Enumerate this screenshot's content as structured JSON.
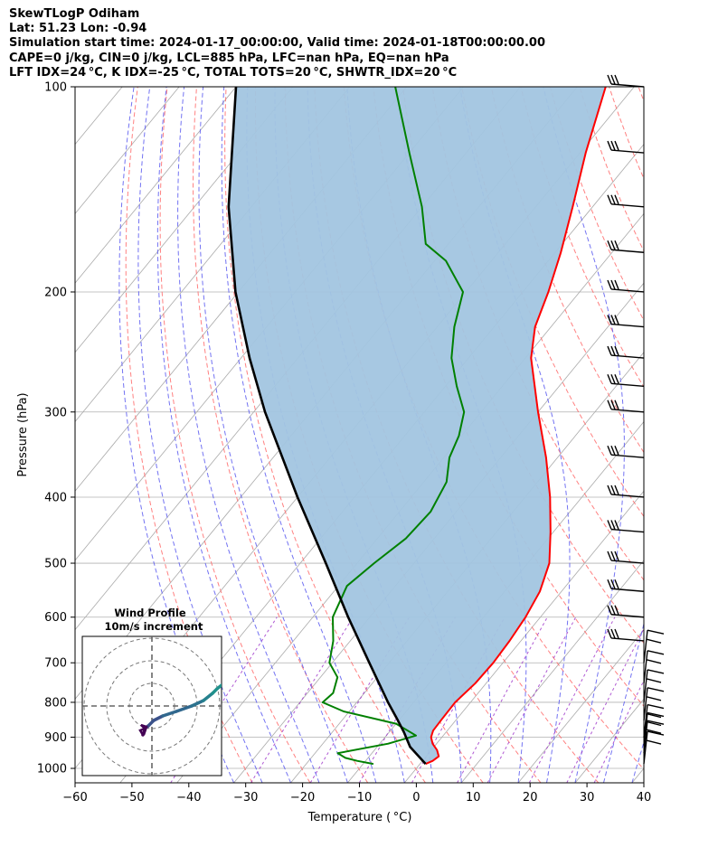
{
  "header": {
    "lines": [
      "SkewTLogP Odiham",
      "Lat: 51.23   Lon: -0.94",
      "Simulation start time: 2024-01-17_00:00:00, Valid time: 2024-01-18T00:00:00.00",
      "CAPE=0 j/kg, CIN=0 j/kg, LCL=885 hPa, LFC=nan hPa, EQ=nan hPa",
      "LFT IDX=24 °C, K IDX=-25 °C, TOTAL TOTS=20 °C, SHWTR_IDX=20 °C"
    ]
  },
  "chart_data": {
    "type": "line",
    "subtype": "skew-t log-p",
    "xlabel": "Temperature ( °C)",
    "ylabel": "Pressure (hPa)",
    "xlim": [
      -60,
      40
    ],
    "ylim": [
      1050,
      100
    ],
    "yscale": "log",
    "x_ticks": [
      "−60",
      "−50",
      "−40",
      "−30",
      "−20",
      "−10",
      "0",
      "10",
      "20",
      "30",
      "40"
    ],
    "y_ticks": [
      {
        "p": 100,
        "label": "100"
      },
      {
        "p": 200,
        "label": "200"
      },
      {
        "p": 300,
        "label": "300"
      },
      {
        "p": 400,
        "label": "400"
      },
      {
        "p": 500,
        "label": "500"
      },
      {
        "p": 600,
        "label": "600"
      },
      {
        "p": 700,
        "label": "700"
      },
      {
        "p": 800,
        "label": "800"
      },
      {
        "p": 900,
        "label": "900"
      },
      {
        "p": 1000,
        "label": "1000"
      }
    ],
    "grid": true,
    "colors": {
      "temperature": "#ff0000",
      "dewpoint": "#008000",
      "parcel": "#000000",
      "cape_fill": "#a2c5e0",
      "dry_adiabats": "#ff6b6b",
      "moist_adiabats": "#5a5af0",
      "mixing_ratio": "#9b30c8",
      "isotherms": "#aaaaaa"
    },
    "series": [
      {
        "role": "temperature",
        "points": [
          [
            985,
            1.0
          ],
          [
            975,
            1.8
          ],
          [
            960,
            2.2
          ],
          [
            940,
            1.0
          ],
          [
            920,
            -0.7
          ],
          [
            900,
            -1.9
          ],
          [
            880,
            -2.5
          ],
          [
            850,
            -2.6
          ],
          [
            800,
            -2.7
          ],
          [
            750,
            -1.9
          ],
          [
            700,
            -1.7
          ],
          [
            650,
            -2.0
          ],
          [
            600,
            -2.6
          ],
          [
            550,
            -3.8
          ],
          [
            500,
            -6.2
          ],
          [
            450,
            -10.5
          ],
          [
            400,
            -15.6
          ],
          [
            350,
            -22.0
          ],
          [
            300,
            -30.0
          ],
          [
            250,
            -39.0
          ],
          [
            225,
            -42.8
          ],
          [
            200,
            -45.5
          ],
          [
            175,
            -49.0
          ],
          [
            150,
            -53.5
          ],
          [
            125,
            -59.0
          ],
          [
            100,
            -65.0
          ]
        ]
      },
      {
        "role": "dewpoint",
        "points": [
          [
            985,
            -8.2
          ],
          [
            975,
            -11.5
          ],
          [
            965,
            -14.0
          ],
          [
            950,
            -16.0
          ],
          [
            920,
            -8.5
          ],
          [
            895,
            -4.8
          ],
          [
            860,
            -10.0
          ],
          [
            825,
            -21.0
          ],
          [
            800,
            -26.0
          ],
          [
            775,
            -25.5
          ],
          [
            735,
            -27.0
          ],
          [
            700,
            -30.5
          ],
          [
            650,
            -33.0
          ],
          [
            600,
            -36.5
          ],
          [
            540,
            -38.5
          ],
          [
            500,
            -37.0
          ],
          [
            460,
            -35.0
          ],
          [
            420,
            -34.5
          ],
          [
            380,
            -36.0
          ],
          [
            350,
            -39.0
          ],
          [
            325,
            -40.5
          ],
          [
            300,
            -43.0
          ],
          [
            275,
            -48.0
          ],
          [
            250,
            -53.0
          ],
          [
            225,
            -57.0
          ],
          [
            200,
            -60.5
          ],
          [
            180,
            -68.0
          ],
          [
            170,
            -74.0
          ],
          [
            150,
            -80.0
          ],
          [
            125,
            -90.0
          ],
          [
            100,
            -102.0
          ]
        ]
      },
      {
        "role": "parcel",
        "points": [
          [
            985,
            1.0
          ],
          [
            930,
            -4.2
          ],
          [
            885,
            -7.4
          ],
          [
            850,
            -10.2
          ],
          [
            800,
            -14.5
          ],
          [
            700,
            -23.5
          ],
          [
            600,
            -33.8
          ],
          [
            500,
            -45.5
          ],
          [
            400,
            -60.0
          ],
          [
            300,
            -78.0
          ],
          [
            250,
            -88.5
          ],
          [
            200,
            -100.5
          ],
          [
            150,
            -114.0
          ],
          [
            100,
            -130.0
          ]
        ]
      }
    ],
    "wind_barbs": {
      "pressures": [
        100,
        125,
        150,
        175,
        200,
        225,
        250,
        275,
        300,
        350,
        400,
        450,
        500,
        550,
        600,
        650,
        700,
        750,
        800,
        850,
        900,
        925,
        950,
        985
      ]
    },
    "inset": {
      "title": "Wind Profile",
      "subtitle": "10m/s increment",
      "grid_rings": 3
    }
  }
}
